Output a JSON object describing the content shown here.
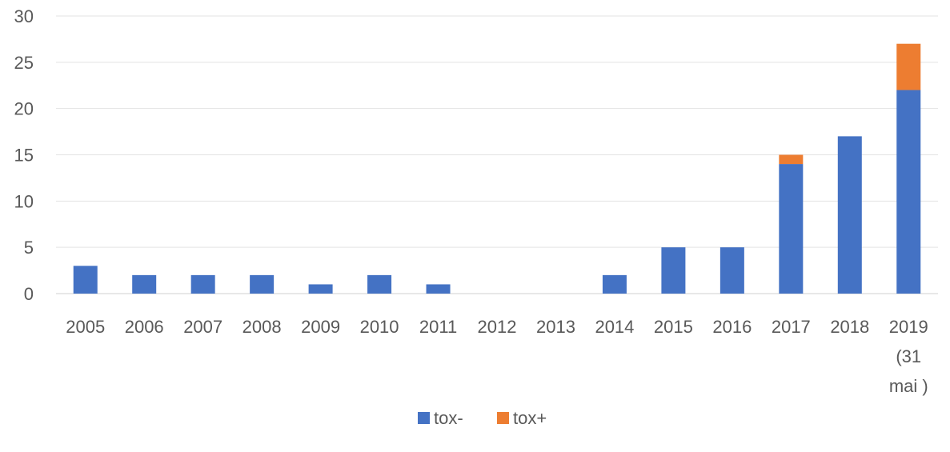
{
  "chart_data": {
    "type": "bar",
    "stacked": true,
    "title": "",
    "xlabel": "",
    "ylabel": "",
    "ylim": [
      0,
      30
    ],
    "yticks": [
      0,
      5,
      10,
      15,
      20,
      25,
      30
    ],
    "grid": true,
    "legend_position": "bottom",
    "categories": [
      [
        "2005"
      ],
      [
        "2006"
      ],
      [
        "2007"
      ],
      [
        "2008"
      ],
      [
        "2009"
      ],
      [
        "2010"
      ],
      [
        "2011"
      ],
      [
        "2012"
      ],
      [
        "2013"
      ],
      [
        "2014"
      ],
      [
        "2015"
      ],
      [
        "2016"
      ],
      [
        "2017"
      ],
      [
        "2018"
      ],
      [
        "2019",
        "(31",
        "mai )"
      ]
    ],
    "series": [
      {
        "name": "tox-",
        "color": "#4472C4",
        "values": [
          3,
          2,
          2,
          2,
          1,
          2,
          1,
          0,
          0,
          2,
          5,
          5,
          14,
          17,
          22
        ]
      },
      {
        "name": "tox+",
        "color": "#ED7D31",
        "values": [
          0,
          0,
          0,
          0,
          0,
          0,
          0,
          0,
          0,
          0,
          0,
          0,
          1,
          0,
          5
        ]
      }
    ]
  }
}
